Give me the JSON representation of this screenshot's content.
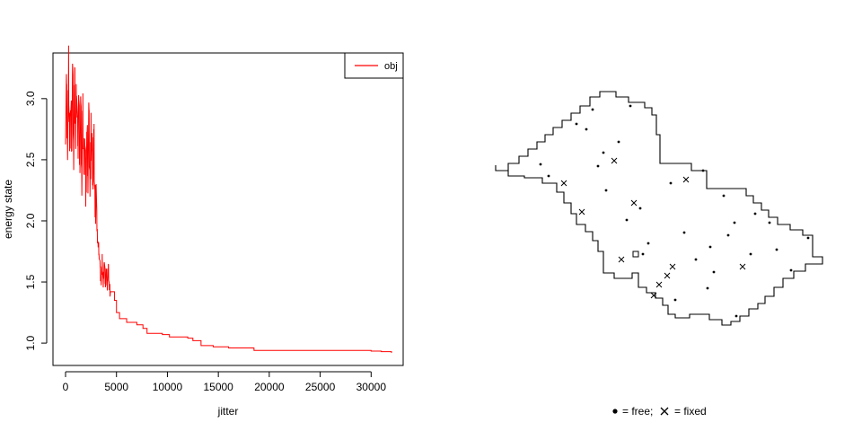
{
  "chart_data": [
    {
      "type": "line",
      "title": "",
      "xlabel": "jitter",
      "ylabel": "energy state",
      "xlim": [
        0,
        32000
      ],
      "ylim": [
        0.92,
        3.3
      ],
      "x_ticks": [
        0,
        5000,
        10000,
        15000,
        20000,
        25000,
        30000
      ],
      "y_ticks": [
        1.0,
        1.5,
        2.0,
        2.5,
        3.0
      ],
      "y_tick_labels": [
        "1.0",
        "1.5",
        "2.0",
        "2.5",
        "3.0"
      ],
      "legend": {
        "placement": "top-right",
        "entries": [
          {
            "name": "obj",
            "color": "#ff0000"
          }
        ]
      },
      "series": [
        {
          "name": "obj",
          "color": "#ff0000",
          "noisy_segment": {
            "x": [
              0,
              100,
              200,
              300,
              400,
              500,
              600,
              700,
              800,
              900,
              1000,
              1100,
              1200,
              1300,
              1400,
              1500,
              1600,
              1700,
              1800,
              1900,
              2000,
              2100,
              2200,
              2300,
              2400,
              2500,
              2600,
              2700,
              2800,
              2900,
              3000,
              3100,
              3200,
              3300,
              3400,
              3500,
              3600,
              3700,
              3800,
              3900,
              4000,
              4100,
              4200,
              4300,
              4400
            ],
            "y": [
              2.85,
              3.05,
              2.6,
              3.25,
              2.55,
              3.0,
              2.7,
              3.28,
              2.6,
              3.15,
              2.65,
              3.22,
              2.55,
              3.1,
              2.5,
              2.95,
              2.35,
              2.9,
              2.4,
              2.8,
              2.25,
              2.75,
              2.45,
              2.85,
              2.3,
              2.7,
              2.55,
              2.4,
              2.65,
              2.05,
              2.35,
              1.9,
              1.8,
              1.75,
              1.6,
              1.5,
              1.68,
              1.45,
              1.7,
              1.5,
              1.6,
              1.48,
              1.62,
              1.45,
              1.42
            ]
          },
          "step_segment": {
            "x": [
              4400,
              4800,
              5000,
              5300,
              6000,
              7000,
              7600,
              8000,
              9500,
              10200,
              12000,
              12500,
              13300,
              14500,
              16000,
              18500,
              25000,
              30000,
              31000,
              32000
            ],
            "y": [
              1.42,
              1.35,
              1.25,
              1.2,
              1.17,
              1.15,
              1.12,
              1.08,
              1.07,
              1.05,
              1.04,
              1.02,
              0.98,
              0.97,
              0.96,
              0.94,
              0.94,
              0.935,
              0.93,
              0.92
            ]
          }
        }
      ]
    },
    {
      "type": "scatter",
      "title": "",
      "xlabel": "",
      "ylabel": "",
      "legend": {
        "placement": "bottom-center",
        "entries": [
          {
            "symbol": "dot",
            "label": "= free;"
          },
          {
            "symbol": "cross",
            "label": "= fixed"
          }
        ]
      },
      "boundary_color": "#000000",
      "boundary_polygon": [
        [
          0,
          100
        ],
        [
          0,
          96
        ],
        [
          3,
          96
        ],
        [
          3,
          92
        ],
        [
          7,
          92
        ],
        [
          7,
          88
        ],
        [
          10,
          88
        ],
        [
          10,
          84
        ],
        [
          13,
          84
        ],
        [
          13,
          80
        ],
        [
          16,
          80
        ],
        [
          16,
          76
        ],
        [
          19,
          76
        ],
        [
          19,
          72
        ],
        [
          22,
          72
        ],
        [
          22,
          68
        ],
        [
          25,
          68
        ],
        [
          25,
          64
        ],
        [
          28,
          64
        ],
        [
          28,
          60
        ],
        [
          33,
          60
        ],
        [
          33,
          56
        ],
        [
          36,
          56
        ],
        [
          36,
          52
        ],
        [
          40,
          52
        ],
        [
          40,
          48
        ],
        [
          43,
          48
        ],
        [
          43,
          44
        ],
        [
          46,
          44
        ],
        [
          46,
          40
        ],
        [
          49,
          40
        ],
        [
          49,
          36
        ],
        [
          52,
          36
        ],
        [
          52,
          32
        ],
        [
          55,
          32
        ],
        [
          55,
          28
        ],
        [
          58,
          28
        ],
        [
          58,
          26
        ],
        [
          61,
          26
        ],
        [
          61,
          22
        ],
        [
          64,
          22
        ],
        [
          64,
          18
        ],
        [
          67,
          18
        ],
        [
          67,
          15
        ],
        [
          70,
          15
        ],
        [
          70,
          12
        ],
        [
          73,
          12
        ],
        [
          73,
          9
        ],
        [
          76,
          9
        ],
        [
          76,
          6
        ],
        [
          79,
          6
        ],
        [
          79,
          4
        ],
        [
          83,
          4
        ],
        [
          83,
          1
        ],
        [
          87,
          1
        ],
        [
          87,
          0
        ],
        [
          90,
          0
        ],
        [
          90,
          4
        ],
        [
          93,
          4
        ],
        [
          93,
          8
        ],
        [
          96,
          8
        ],
        [
          96,
          12
        ],
        [
          99,
          12
        ],
        [
          99,
          16
        ],
        [
          102,
          16
        ],
        [
          102,
          20
        ],
        [
          105,
          20
        ],
        [
          105,
          24
        ],
        [
          108,
          24
        ],
        [
          108,
          28
        ],
        [
          111,
          28
        ],
        [
          111,
          32
        ],
        [
          113,
          32
        ],
        [
          113,
          37
        ],
        [
          116,
          37
        ],
        [
          116,
          41
        ],
        [
          119,
          41
        ],
        [
          119,
          45
        ],
        [
          122,
          45
        ],
        [
          122,
          49
        ],
        [
          125,
          49
        ],
        [
          125,
          53
        ],
        [
          128,
          53
        ],
        [
          128,
          57
        ],
        [
          131,
          57
        ],
        [
          131,
          61
        ],
        [
          134,
          61
        ],
        [
          134,
          65
        ],
        [
          137,
          65
        ],
        [
          137,
          69
        ],
        [
          140,
          69
        ],
        [
          140,
          73
        ],
        [
          143,
          73
        ],
        [
          143,
          77
        ],
        [
          146,
          77
        ],
        [
          146,
          81
        ],
        [
          149,
          81
        ],
        [
          149,
          85
        ],
        [
          152,
          85
        ],
        [
          152,
          89
        ],
        [
          155,
          89
        ],
        [
          155,
          93
        ],
        [
          158,
          93
        ],
        [
          158,
          97
        ],
        [
          162,
          97
        ],
        [
          162,
          102
        ],
        [
          165,
          102
        ],
        [
          165,
          106
        ],
        [
          168,
          106
        ],
        [
          168,
          110
        ],
        [
          171,
          110
        ],
        [
          171,
          114
        ],
        [
          174,
          114
        ],
        [
          174,
          118
        ],
        [
          177,
          118
        ],
        [
          177,
          122
        ],
        [
          180,
          122
        ],
        [
          180,
          126
        ],
        [
          183,
          126
        ],
        [
          183,
          130
        ],
        [
          186,
          130
        ],
        [
          186,
          134
        ],
        [
          189,
          134
        ],
        [
          189,
          138
        ],
        [
          192,
          138
        ],
        [
          192,
          142
        ],
        [
          195,
          142
        ],
        [
          195,
          146
        ],
        [
          199,
          146
        ],
        [
          199,
          150
        ],
        [
          202,
          150
        ],
        [
          202,
          154
        ],
        [
          206,
          154
        ],
        [
          206,
          158
        ],
        [
          210,
          158
        ],
        [
          210,
          162
        ],
        [
          214,
          162
        ],
        [
          214,
          166
        ],
        [
          218,
          166
        ],
        [
          218,
          170
        ],
        [
          222,
          170
        ],
        [
          222,
          174
        ],
        [
          226,
          174
        ],
        [
          226,
          178
        ],
        [
          230,
          178
        ],
        [
          230,
          182
        ],
        [
          234,
          182
        ],
        [
          234,
          186
        ],
        [
          238,
          186
        ],
        [
          238,
          190
        ],
        [
          242,
          190
        ],
        [
          242,
          194
        ],
        [
          246,
          194
        ],
        [
          246,
          198
        ],
        [
          250,
          198
        ],
        [
          250,
          202
        ],
        [
          254,
          202
        ],
        [
          254,
          206
        ],
        [
          258,
          206
        ],
        [
          258,
          210
        ],
        [
          262,
          210
        ],
        [
          262,
          214
        ],
        [
          266,
          214
        ],
        [
          266,
          218
        ],
        [
          270,
          218
        ],
        [
          270,
          222
        ],
        [
          274,
          222
        ],
        [
          274,
          226
        ],
        [
          278,
          226
        ],
        [
          278,
          230
        ],
        [
          282,
          230
        ],
        [
          282,
          234
        ],
        [
          286,
          234
        ],
        [
          286,
          238
        ],
        [
          290,
          238
        ],
        [
          290,
          242
        ],
        [
          294,
          242
        ],
        [
          294,
          246
        ],
        [
          298,
          246
        ],
        [
          298,
          250
        ],
        [
          302,
          250
        ],
        [
          302,
          254
        ],
        [
          306,
          254
        ],
        [
          306,
          258
        ],
        [
          310,
          258
        ],
        [
          310,
          262
        ],
        [
          314,
          262
        ],
        [
          314,
          266
        ],
        [
          318,
          266
        ],
        [
          318,
          270
        ],
        [
          322,
          270
        ],
        [
          322,
          274
        ],
        [
          326,
          274
        ],
        [
          326,
          278
        ],
        [
          330,
          278
        ],
        [
          330,
          282
        ],
        [
          334,
          282
        ],
        [
          334,
          286
        ],
        [
          338,
          286
        ],
        [
          338,
          290
        ],
        [
          342,
          290
        ],
        [
          342,
          294
        ],
        [
          346,
          294
        ],
        [
          346,
          298
        ],
        [
          350,
          298
        ],
        [
          350,
          302
        ],
        [
          354,
          302
        ],
        [
          354,
          306
        ],
        [
          358,
          306
        ],
        [
          358,
          310
        ],
        [
          362,
          310
        ],
        [
          362,
          314
        ],
        [
          366,
          314
        ],
        [
          366,
          318
        ],
        [
          370,
          318
        ],
        [
          370,
          322
        ],
        [
          374,
          322
        ],
        [
          374,
          326
        ],
        [
          378,
          326
        ],
        [
          378,
          330
        ],
        [
          382,
          330
        ],
        [
          382,
          334
        ],
        [
          386,
          334
        ],
        [
          386,
          338
        ],
        [
          390,
          338
        ],
        [
          390,
          342
        ],
        [
          394,
          342
        ],
        [
          394,
          346
        ],
        [
          398,
          346
        ],
        [
          398,
          350
        ],
        [
          402,
          350
        ],
        [
          402,
          354
        ],
        [
          406,
          354
        ],
        [
          406,
          358
        ],
        [
          410,
          358
        ],
        [
          410,
          362
        ],
        [
          414,
          362
        ],
        [
          414,
          366
        ],
        [
          418,
          366
        ],
        [
          418,
          370
        ],
        [
          422,
          370
        ],
        [
          422,
          374
        ],
        [
          426,
          374
        ],
        [
          426,
          378
        ],
        [
          430,
          378
        ],
        [
          430,
          382
        ],
        [
          434,
          382
        ],
        [
          434,
          386
        ],
        [
          438,
          386
        ],
        [
          438,
          390
        ],
        [
          442,
          390
        ],
        [
          442,
          394
        ],
        [
          446,
          394
        ],
        [
          446,
          398
        ],
        [
          450,
          398
        ],
        [
          450,
          402
        ],
        [
          454,
          402
        ],
        [
          454,
          406
        ],
        [
          458,
          406
        ],
        [
          458,
          410
        ],
        [
          462,
          410
        ],
        [
          462,
          414
        ],
        [
          466,
          414
        ],
        [
          466,
          418
        ],
        [
          470,
          418
        ],
        [
          470,
          422
        ],
        [
          474,
          422
        ],
        [
          474,
          426
        ],
        [
          478,
          426
        ],
        [
          478,
          430
        ],
        [
          482,
          430
        ],
        [
          482,
          434
        ],
        [
          486,
          434
        ],
        [
          486,
          438
        ],
        [
          490,
          438
        ],
        [
          490,
          442
        ],
        [
          494,
          442
        ],
        [
          494,
          446
        ],
        [
          498,
          446
        ],
        [
          498,
          450
        ]
      ],
      "free_points": [],
      "fixed_points": []
    }
  ]
}
